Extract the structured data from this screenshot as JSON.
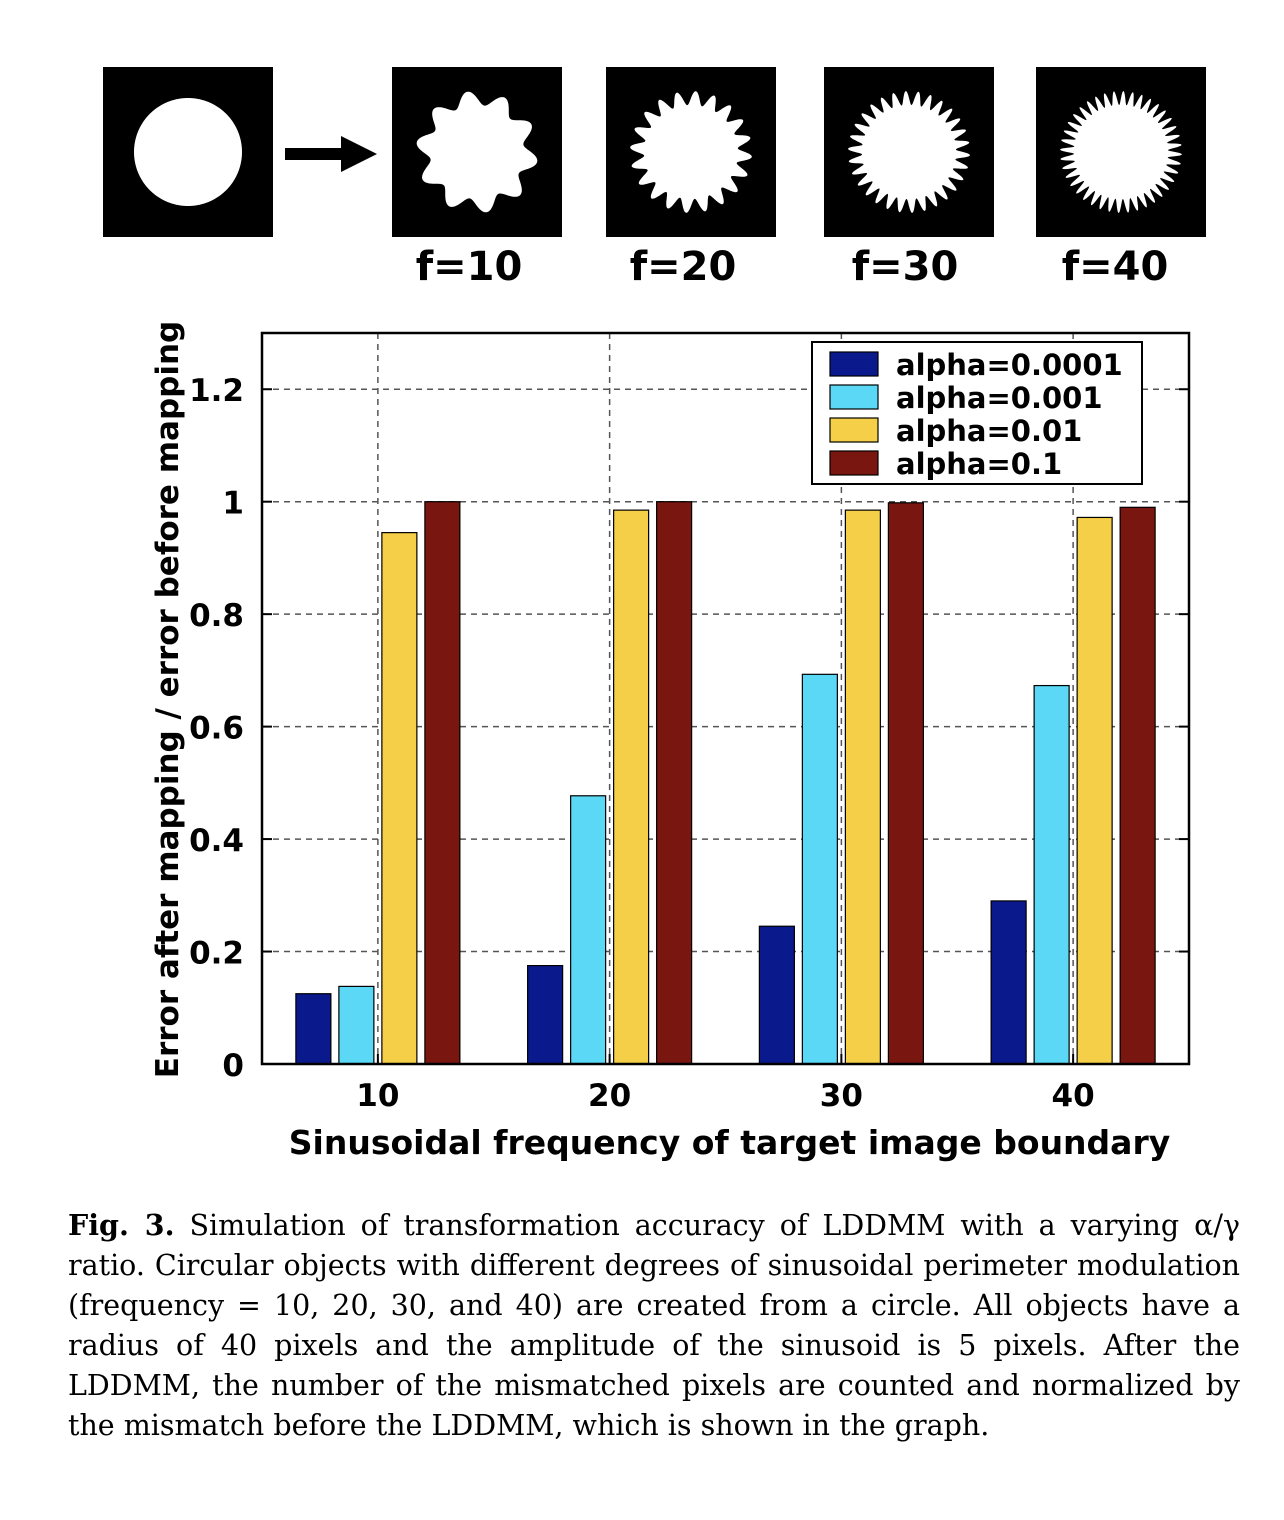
{
  "shapes": [
    {
      "label": "",
      "freq": 0
    },
    {
      "label": "f=10",
      "freq": 10
    },
    {
      "label": "f=20",
      "freq": 20
    },
    {
      "label": "f=30",
      "freq": 30
    },
    {
      "label": "f=40",
      "freq": 40
    }
  ],
  "chart_data": {
    "type": "bar",
    "categories": [
      "10",
      "20",
      "30",
      "40"
    ],
    "series": [
      {
        "name": "alpha=0.0001",
        "color": "#0a1a8c",
        "values": [
          0.125,
          0.175,
          0.245,
          0.29
        ]
      },
      {
        "name": "alpha=0.001",
        "color": "#5ad8f5",
        "values": [
          0.138,
          0.477,
          0.693,
          0.673
        ]
      },
      {
        "name": "alpha=0.01",
        "color": "#f5cf48",
        "values": [
          0.945,
          0.985,
          0.985,
          0.972
        ]
      },
      {
        "name": "alpha=0.1",
        "color": "#7a1610",
        "values": [
          1.0,
          1.0,
          0.998,
          0.99
        ]
      }
    ],
    "xlabel": "Sinusoidal frequency of target image boundary",
    "ylabel": "Error after mapping / error before mapping",
    "ylim": [
      0,
      1.3
    ],
    "yticks": [
      "0",
      "0.2",
      "0.4",
      "0.6",
      "0.8",
      "1",
      "1.2"
    ],
    "ytick_values": [
      0,
      0.2,
      0.4,
      0.6,
      0.8,
      1.0,
      1.2
    ],
    "grid": true,
    "legend": "top-right"
  },
  "caption": {
    "label": "Fig. 3.",
    "text": "Simulation of transformation accuracy of LDDMM with a varying α/γ ratio. Circular objects with different degrees of sinusoidal perimeter modulation (frequency = 10, 20, 30, and 40) are created from a circle. All objects have a radius of 40 pixels and the amplitude of the sinusoid is 5 pixels. After the LDDMM, the number of the mismatched pixels are counted and normalized by the mismatch before the LDDMM, which is shown in the graph."
  }
}
